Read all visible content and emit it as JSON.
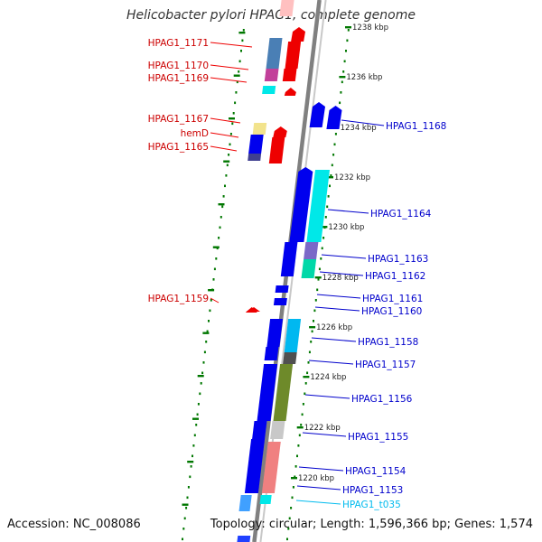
{
  "title": "Helicobacter pylori HPAG1, complete genome",
  "footer": {
    "accession": "Accession: NC_008086",
    "topology": "Topology: circular; Length: 1,596,366 bp; Genes: 1,574"
  },
  "scale_labels": [
    "1238 kbp",
    "1236 kbp",
    "1234 kbp",
    "1232 kbp",
    "1230 kbp",
    "1228 kbp",
    "1226 kbp",
    "1224 kbp",
    "1222 kbp",
    "1220 kbp"
  ],
  "genes_left": [
    "HPAG1_1171",
    "HPAG1_1170",
    "HPAG1_1169",
    "HPAG1_1167",
    "hemD",
    "HPAG1_1165",
    "HPAG1_1159"
  ],
  "genes_right": [
    "HPAG1_1168",
    "HPAG1_1164",
    "HPAG1_1163",
    "HPAG1_1162",
    "HPAG1_1161",
    "HPAG1_1160",
    "HPAG1_1158",
    "HPAG1_1157",
    "HPAG1_1156",
    "HPAG1_1155",
    "HPAG1_1154",
    "HPAG1_1153",
    "HPAG1_t035"
  ],
  "colors": {
    "forward": "#0000ee",
    "reverse": "#ee0000",
    "trna": "#00bbee",
    "backbone": "#808080",
    "ticks": "#007700"
  }
}
